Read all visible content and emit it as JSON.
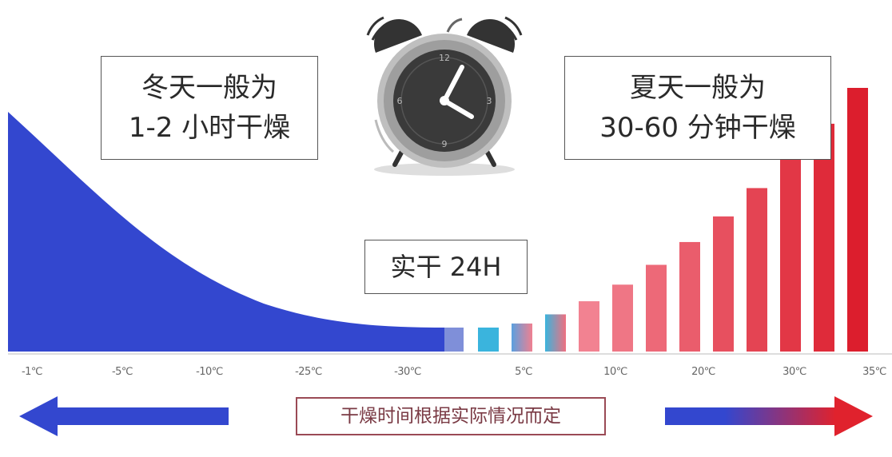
{
  "winter": {
    "line1": "冬天一般为",
    "line2": "1-2 小时干燥"
  },
  "summer": {
    "line1": "夏天一般为",
    "line2": "30-60 分钟干燥"
  },
  "center": {
    "label": "实干 24H"
  },
  "axis": {
    "ticks": [
      "-1℃",
      "-5℃",
      "-10℃",
      "-25℃",
      "-30℃",
      "5℃",
      "10℃",
      "20℃",
      "30℃",
      "35℃"
    ]
  },
  "note": "干燥时间根据实际情况而定",
  "colors": {
    "cold": "#3347cf",
    "hot": "#e0222d",
    "cyan": "#3ab4dd",
    "border": "#555555",
    "note_border": "#9a4a55"
  },
  "icons": {
    "clock": "alarm-clock-icon",
    "left_arrow": "arrow-left-icon",
    "right_arrow": "arrow-right-icon"
  }
}
